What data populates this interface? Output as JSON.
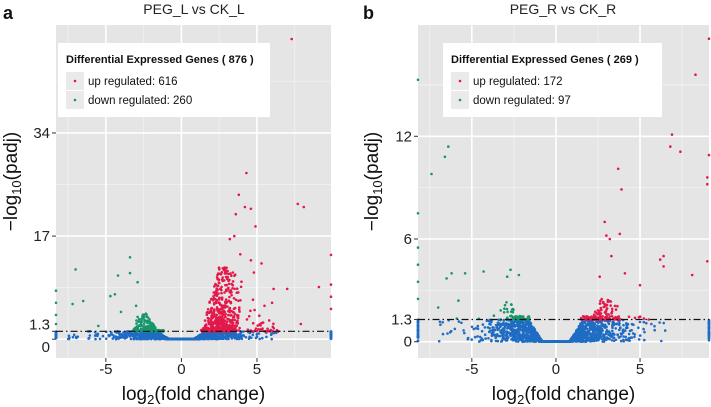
{
  "colors": {
    "up": "#e3184b",
    "down": "#17966e",
    "ns": "#1f6cc4",
    "panel_bg": "#e5e5e5",
    "grid": "#ffffff"
  },
  "chart_data": [
    {
      "type": "scatter",
      "panel_letter": "a",
      "title": "PEG_L vs CK_L",
      "xlabel": {
        "main": "log",
        "sub": "2",
        "rest": "(fold change)"
      },
      "ylabel": {
        "pre": "−log",
        "sub": "10",
        "rest": "(padj)"
      },
      "xlim": [
        -8.3,
        9.9
      ],
      "ylim": [
        -3.1,
        51.8
      ],
      "xticks": [
        {
          "value": -5,
          "label": "-5"
        },
        {
          "value": 0,
          "label": "0"
        },
        {
          "value": 5,
          "label": "5"
        }
      ],
      "yticks": [
        {
          "value": 0,
          "label": "0"
        },
        {
          "value": 1.3,
          "label": "1.3"
        },
        {
          "value": 17,
          "label": "17"
        },
        {
          "value": 34,
          "label": "34"
        }
      ],
      "threshold": 1.3,
      "legend": {
        "title": "Differential Expressed Genes ( 876 )",
        "items": [
          {
            "key": "up",
            "label": "up regulated: 616"
          },
          {
            "key": "down",
            "label": "down regulated: 260"
          }
        ],
        "placement": "top-left"
      },
      "outliers": {
        "up": [
          [
            7.3,
            49.5
          ],
          [
            4.3,
            27.4
          ],
          [
            3.8,
            23.8
          ],
          [
            4.2,
            21.8
          ],
          [
            4.6,
            21.5
          ],
          [
            3.6,
            20.6
          ],
          [
            4.9,
            18.6
          ],
          [
            7.7,
            22.3
          ],
          [
            8.1,
            21.8
          ],
          [
            9.9,
            13.9
          ],
          [
            9.1,
            8.6
          ],
          [
            7.0,
            8.3
          ],
          [
            6.1,
            8.3
          ],
          [
            5.3,
            12.5
          ],
          [
            4.8,
            11.0
          ],
          [
            4.6,
            13.0
          ],
          [
            3.9,
            14.0
          ],
          [
            3.2,
            16.5
          ],
          [
            3.5,
            17.0
          ],
          [
            7.9,
            2.5
          ],
          [
            6.0,
            6.0
          ],
          [
            5.5,
            5.5
          ],
          [
            9.9,
            9.0
          ],
          [
            9.9,
            7.0
          ],
          [
            9.9,
            5.0
          ]
        ],
        "down": [
          [
            -7.0,
            11.5
          ],
          [
            -3.4,
            13.5
          ],
          [
            -7.2,
            5.8
          ],
          [
            -6.5,
            6.3
          ],
          [
            -4.2,
            10.5
          ],
          [
            -3.4,
            10.9
          ],
          [
            -2.9,
            9.4
          ],
          [
            -4.4,
            7.4
          ],
          [
            -4.7,
            7.1
          ],
          [
            -4.0,
            4.5
          ],
          [
            -5.5,
            2.2
          ],
          [
            -3.0,
            5.5
          ],
          [
            -8.3,
            8.0
          ],
          [
            -8.3,
            6.0
          ],
          [
            -8.3,
            4.0
          ],
          [
            -8.3,
            2.5
          ]
        ]
      },
      "clusters": {
        "up": {
          "count": 560,
          "x_range": [
            1.2,
            6.5
          ],
          "peak_x": 2.6,
          "peak_y": 12
        },
        "down": {
          "count": 230,
          "x_range": [
            -3.2,
            -1.2
          ],
          "peak_x": -2.0,
          "peak_y": 4.5
        },
        "ns": {
          "count": 1500,
          "x_range": [
            -7.5,
            6.5
          ]
        }
      }
    },
    {
      "type": "scatter",
      "panel_letter": "b",
      "title": "PEG_R vs CK_R",
      "xlabel": {
        "main": "log",
        "sub": "2",
        "rest": "(fold change)"
      },
      "ylabel": {
        "pre": "−log",
        "sub": "10",
        "rest": "(padj)"
      },
      "xlim": [
        -8.2,
        9.1
      ],
      "ylim": [
        -0.95,
        18.5
      ],
      "xticks": [
        {
          "value": -5,
          "label": "-5"
        },
        {
          "value": 0,
          "label": "0"
        },
        {
          "value": 5,
          "label": "5"
        }
      ],
      "yticks": [
        {
          "value": 0,
          "label": "0"
        },
        {
          "value": 1.3,
          "label": "1.3"
        },
        {
          "value": 6,
          "label": "6"
        },
        {
          "value": 12,
          "label": "12"
        }
      ],
      "threshold": 1.3,
      "legend": {
        "title": "Differential Expressed Genes ( 269 )",
        "items": [
          {
            "key": "up",
            "label": "up regulated: 172"
          },
          {
            "key": "down",
            "label": "down regulated: 97"
          }
        ],
        "placement": "top-center"
      },
      "outliers": {
        "up": [
          [
            9.1,
            17.7
          ],
          [
            8.3,
            15.6
          ],
          [
            6.9,
            12.1
          ],
          [
            6.8,
            11.4
          ],
          [
            7.4,
            11.1
          ],
          [
            9.1,
            10.9
          ],
          [
            9.0,
            9.6
          ],
          [
            9.0,
            9.2
          ],
          [
            3.7,
            10.1
          ],
          [
            3.9,
            8.9
          ],
          [
            2.9,
            7.0
          ],
          [
            3.8,
            6.3
          ],
          [
            3.0,
            6.2
          ],
          [
            3.2,
            6.0
          ],
          [
            3.3,
            5.0
          ],
          [
            6.4,
            5.0
          ],
          [
            6.4,
            4.4
          ],
          [
            8.1,
            3.9
          ],
          [
            9.0,
            4.7
          ],
          [
            6.2,
            4.8
          ],
          [
            4.1,
            4.0
          ],
          [
            2.6,
            3.8
          ],
          [
            5.0,
            3.3
          ]
        ],
        "down": [
          [
            -8.2,
            15.3
          ],
          [
            -6.4,
            11.4
          ],
          [
            -6.6,
            10.8
          ],
          [
            -7.4,
            9.8
          ],
          [
            -8.2,
            7.5
          ],
          [
            -4.3,
            4.1
          ],
          [
            -2.7,
            4.2
          ],
          [
            -5.4,
            4.0
          ],
          [
            -6.2,
            4.0
          ],
          [
            -6.5,
            3.7
          ],
          [
            -2.2,
            3.9
          ],
          [
            -2.9,
            3.8
          ],
          [
            -7.0,
            2.0
          ],
          [
            -5.8,
            2.4
          ],
          [
            -8.2,
            5.5
          ],
          [
            -8.2,
            4.5
          ],
          [
            -8.2,
            3.5
          ],
          [
            -8.2,
            2.5
          ]
        ]
      },
      "clusters": {
        "up": {
          "count": 140,
          "x_range": [
            1.5,
            6.0
          ],
          "peak_x": 2.5,
          "peak_y": 2.6
        },
        "down": {
          "count": 75,
          "x_range": [
            -6.0,
            -1.6
          ],
          "peak_x": -2.2,
          "peak_y": 2.6
        },
        "ns": {
          "count": 1600,
          "x_range": [
            -7.0,
            6.5
          ]
        }
      }
    }
  ]
}
